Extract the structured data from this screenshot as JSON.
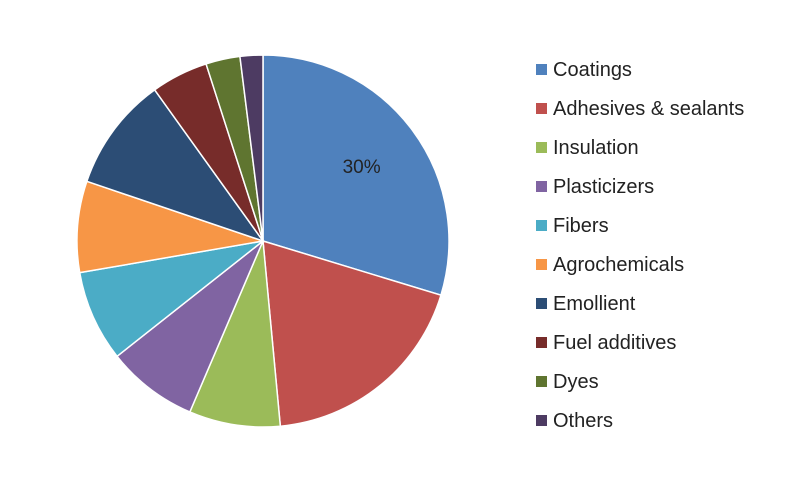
{
  "chart_data": {
    "type": "pie",
    "title": "",
    "start_angle_deg": 0,
    "direction": "clockwise",
    "legend_position": "right",
    "slices": [
      {
        "label": "Coatings",
        "value": 30,
        "color": "#4F81BD",
        "data_label": "30%"
      },
      {
        "label": "Adhesives & sealants",
        "value": 19,
        "color": "#C0504D",
        "data_label": ""
      },
      {
        "label": "Insulation",
        "value": 8,
        "color": "#9BBB59",
        "data_label": ""
      },
      {
        "label": "Plasticizers",
        "value": 8,
        "color": "#8064A2",
        "data_label": ""
      },
      {
        "label": "Fibers",
        "value": 8,
        "color": "#4BACC6",
        "data_label": ""
      },
      {
        "label": "Agrochemicals",
        "value": 8,
        "color": "#F79646",
        "data_label": ""
      },
      {
        "label": "Emollient",
        "value": 10,
        "color": "#2C4D75",
        "data_label": ""
      },
      {
        "label": "Fuel additives",
        "value": 5,
        "color": "#772C2A",
        "data_label": ""
      },
      {
        "label": "Dyes",
        "value": 3,
        "color": "#5F7530",
        "data_label": ""
      },
      {
        "label": "Others",
        "value": 2,
        "color": "#4D3B62",
        "data_label": ""
      }
    ]
  }
}
